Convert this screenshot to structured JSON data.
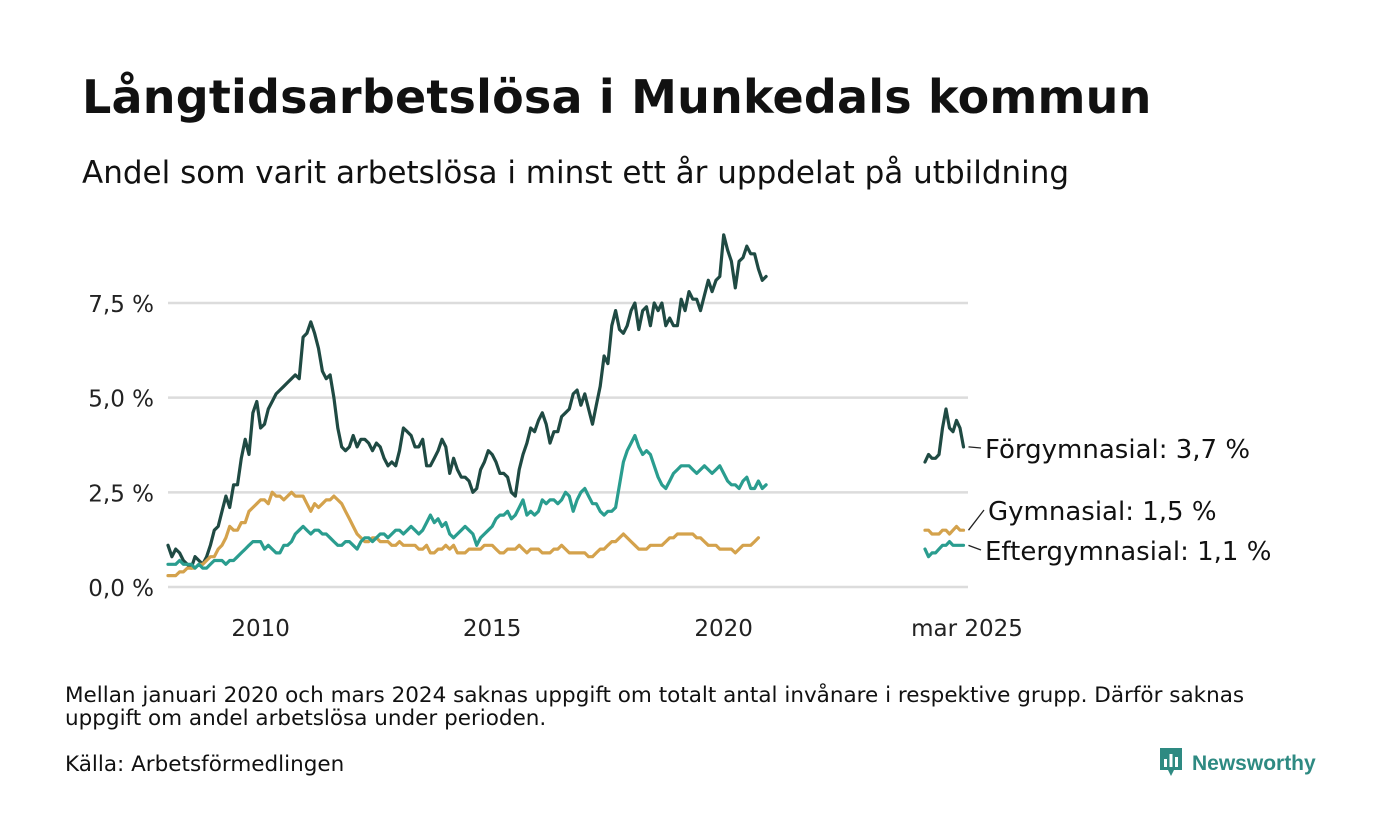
{
  "title": "Långtidsarbetslösa i Munkedals kommun",
  "subtitle": "Andel som varit arbetslösa i minst ett år uppdelat på utbildning",
  "note": "Mellan januari 2020 och mars 2024 saknas uppgift om totalt antal invånare i respektive grupp. Därför saknas uppgift om andel arbetslösa under perioden.",
  "source": "Källa: Arbetsförmedlingen",
  "brand": "Newsworthy",
  "chart_data": {
    "type": "line",
    "title": "Långtidsarbetslösa i Munkedals kommun",
    "subtitle": "Andel som varit arbetslösa i minst ett år uppdelat på utbildning",
    "xlabel": "",
    "ylabel": "",
    "ylim": [
      0,
      10
    ],
    "y_ticks": [
      "0,0 %",
      "2,5 %",
      "5,0 %",
      "7,5 %"
    ],
    "y_tick_values": [
      0,
      2.5,
      5,
      7.5
    ],
    "x_ticks": [
      "2010",
      "2015",
      "2020",
      "mar 2025"
    ],
    "x_tick_values": [
      "2010-01",
      "2015-01",
      "2020-01",
      "2025-03"
    ],
    "grid": true,
    "legend": "direct labels at right end of lines",
    "series": [
      {
        "name": "Förgymnasial",
        "label": "Förgymnasial: 3,7 %",
        "color": "#1f4a43",
        "segments": [
          {
            "start": "2008-01",
            "values": [
              1.1,
              0.8,
              1.0,
              0.9,
              0.7,
              0.6,
              0.5,
              0.8,
              0.7,
              0.6,
              0.8,
              1.1,
              1.5,
              1.6,
              2.0,
              2.4,
              2.1,
              2.7,
              2.7,
              3.4,
              3.9,
              3.5,
              4.6,
              4.9,
              4.2,
              4.3,
              4.7,
              4.9,
              5.1,
              5.2,
              5.3,
              5.4,
              5.5,
              5.6,
              5.5,
              6.6,
              6.7,
              7.0,
              6.7,
              6.3,
              5.7,
              5.5,
              5.6,
              5.0,
              4.2,
              3.7,
              3.6,
              3.7,
              4.0,
              3.7,
              3.9,
              3.9,
              3.8,
              3.6,
              3.8,
              3.7,
              3.4,
              3.2,
              3.3,
              3.2,
              3.6,
              4.2,
              4.1,
              4.0,
              3.7,
              3.7,
              3.9,
              3.2,
              3.2,
              3.4,
              3.6,
              3.9,
              3.7,
              3.0,
              3.4,
              3.1,
              2.9,
              2.9,
              2.8,
              2.5,
              2.6,
              3.1,
              3.3,
              3.6,
              3.5,
              3.3,
              3.0,
              3.0,
              2.9,
              2.5,
              2.4,
              3.1,
              3.5,
              3.8,
              4.2,
              4.1,
              4.4,
              4.6,
              4.3,
              3.8,
              4.1,
              4.1,
              4.5,
              4.6,
              4.7,
              5.1,
              5.2,
              4.8,
              5.1,
              4.7,
              4.3,
              4.8,
              5.3,
              6.1,
              5.9,
              6.9,
              7.3,
              6.8,
              6.7,
              6.9,
              7.3,
              7.5,
              6.8,
              7.3,
              7.4,
              6.9,
              7.5,
              7.3,
              7.5,
              6.9,
              7.1,
              6.9,
              6.9,
              7.6,
              7.3,
              7.8,
              7.6,
              7.6,
              7.3,
              7.7,
              8.1,
              7.8,
              8.1,
              8.2,
              9.3,
              8.9,
              8.6,
              7.9,
              8.6,
              8.7,
              9.0,
              8.8,
              8.8,
              8.4,
              8.1,
              8.2
            ]
          },
          {
            "start": "2024-03",
            "values": [
              3.3,
              3.5,
              3.4,
              3.4,
              3.5,
              4.2,
              4.7,
              4.2,
              4.1,
              4.4,
              4.2,
              3.7
            ]
          }
        ]
      },
      {
        "name": "Gymnasial",
        "label": "Gymnasial: 1,5 %",
        "color": "#d4a24c",
        "segments": [
          {
            "start": "2008-01",
            "values": [
              0.3,
              0.3,
              0.3,
              0.4,
              0.4,
              0.5,
              0.5,
              0.5,
              0.6,
              0.6,
              0.7,
              0.8,
              0.8,
              1.0,
              1.1,
              1.3,
              1.6,
              1.5,
              1.5,
              1.7,
              1.7,
              2.0,
              2.1,
              2.2,
              2.3,
              2.3,
              2.2,
              2.5,
              2.4,
              2.4,
              2.3,
              2.4,
              2.5,
              2.4,
              2.4,
              2.4,
              2.2,
              2.0,
              2.2,
              2.1,
              2.2,
              2.3,
              2.3,
              2.4,
              2.3,
              2.2,
              2.0,
              1.8,
              1.6,
              1.4,
              1.3,
              1.2,
              1.2,
              1.3,
              1.3,
              1.2,
              1.2,
              1.2,
              1.1,
              1.1,
              1.2,
              1.1,
              1.1,
              1.1,
              1.1,
              1.0,
              1.0,
              1.1,
              0.9,
              0.9,
              1.0,
              1.0,
              1.1,
              1.0,
              1.1,
              0.9,
              0.9,
              0.9,
              1.0,
              1.0,
              1.0,
              1.0,
              1.1,
              1.1,
              1.1,
              1.0,
              0.9,
              0.9,
              1.0,
              1.0,
              1.0,
              1.1,
              1.0,
              0.9,
              1.0,
              1.0,
              1.0,
              0.9,
              0.9,
              0.9,
              1.0,
              1.0,
              1.1,
              1.0,
              0.9,
              0.9,
              0.9,
              0.9,
              0.9,
              0.8,
              0.8,
              0.9,
              1.0,
              1.0,
              1.1,
              1.2,
              1.2,
              1.3,
              1.4,
              1.3,
              1.2,
              1.1,
              1.0,
              1.0,
              1.0,
              1.1,
              1.1,
              1.1,
              1.1,
              1.2,
              1.3,
              1.3,
              1.4,
              1.4,
              1.4,
              1.4,
              1.4,
              1.3,
              1.3,
              1.2,
              1.1,
              1.1,
              1.1,
              1.0,
              1.0,
              1.0,
              1.0,
              0.9,
              1.0,
              1.1,
              1.1,
              1.1,
              1.2,
              1.3
            ]
          },
          {
            "start": "2024-03",
            "values": [
              1.5,
              1.5,
              1.4,
              1.4,
              1.4,
              1.5,
              1.5,
              1.4,
              1.5,
              1.6,
              1.5,
              1.5
            ]
          }
        ]
      },
      {
        "name": "Eftergymnasial",
        "label": "Eftergymnasial: 1,1 %",
        "color": "#2a9d8f",
        "segments": [
          {
            "start": "2008-01",
            "values": [
              0.6,
              0.6,
              0.6,
              0.7,
              0.6,
              0.6,
              0.6,
              0.5,
              0.6,
              0.5,
              0.5,
              0.6,
              0.7,
              0.7,
              0.7,
              0.6,
              0.7,
              0.7,
              0.8,
              0.9,
              1.0,
              1.1,
              1.2,
              1.2,
              1.2,
              1.0,
              1.1,
              1.0,
              0.9,
              0.9,
              1.1,
              1.1,
              1.2,
              1.4,
              1.5,
              1.6,
              1.5,
              1.4,
              1.5,
              1.5,
              1.4,
              1.4,
              1.3,
              1.2,
              1.1,
              1.1,
              1.2,
              1.2,
              1.1,
              1.0,
              1.2,
              1.3,
              1.3,
              1.2,
              1.3,
              1.4,
              1.4,
              1.3,
              1.4,
              1.5,
              1.5,
              1.4,
              1.5,
              1.6,
              1.5,
              1.4,
              1.5,
              1.7,
              1.9,
              1.7,
              1.8,
              1.6,
              1.7,
              1.4,
              1.3,
              1.4,
              1.5,
              1.6,
              1.5,
              1.4,
              1.1,
              1.3,
              1.4,
              1.5,
              1.6,
              1.8,
              1.9,
              1.9,
              2.0,
              1.8,
              1.9,
              2.1,
              2.3,
              1.9,
              2.0,
              1.9,
              2.0,
              2.3,
              2.2,
              2.3,
              2.3,
              2.2,
              2.3,
              2.5,
              2.4,
              2.0,
              2.3,
              2.5,
              2.6,
              2.4,
              2.2,
              2.2,
              2.0,
              1.9,
              2.0,
              2.0,
              2.1,
              2.7,
              3.3,
              3.6,
              3.8,
              4.0,
              3.7,
              3.5,
              3.6,
              3.5,
              3.2,
              2.9,
              2.7,
              2.6,
              2.8,
              3.0,
              3.1,
              3.2,
              3.2,
              3.2,
              3.1,
              3.0,
              3.1,
              3.2,
              3.1,
              3.0,
              3.1,
              3.2,
              3.0,
              2.8,
              2.7,
              2.7,
              2.6,
              2.8,
              2.9,
              2.6,
              2.6,
              2.8,
              2.6,
              2.7
            ]
          },
          {
            "start": "2024-03",
            "values": [
              1.0,
              0.8,
              0.9,
              0.9,
              1.0,
              1.1,
              1.1,
              1.2,
              1.1,
              1.1,
              1.1,
              1.1
            ]
          }
        ]
      }
    ]
  }
}
